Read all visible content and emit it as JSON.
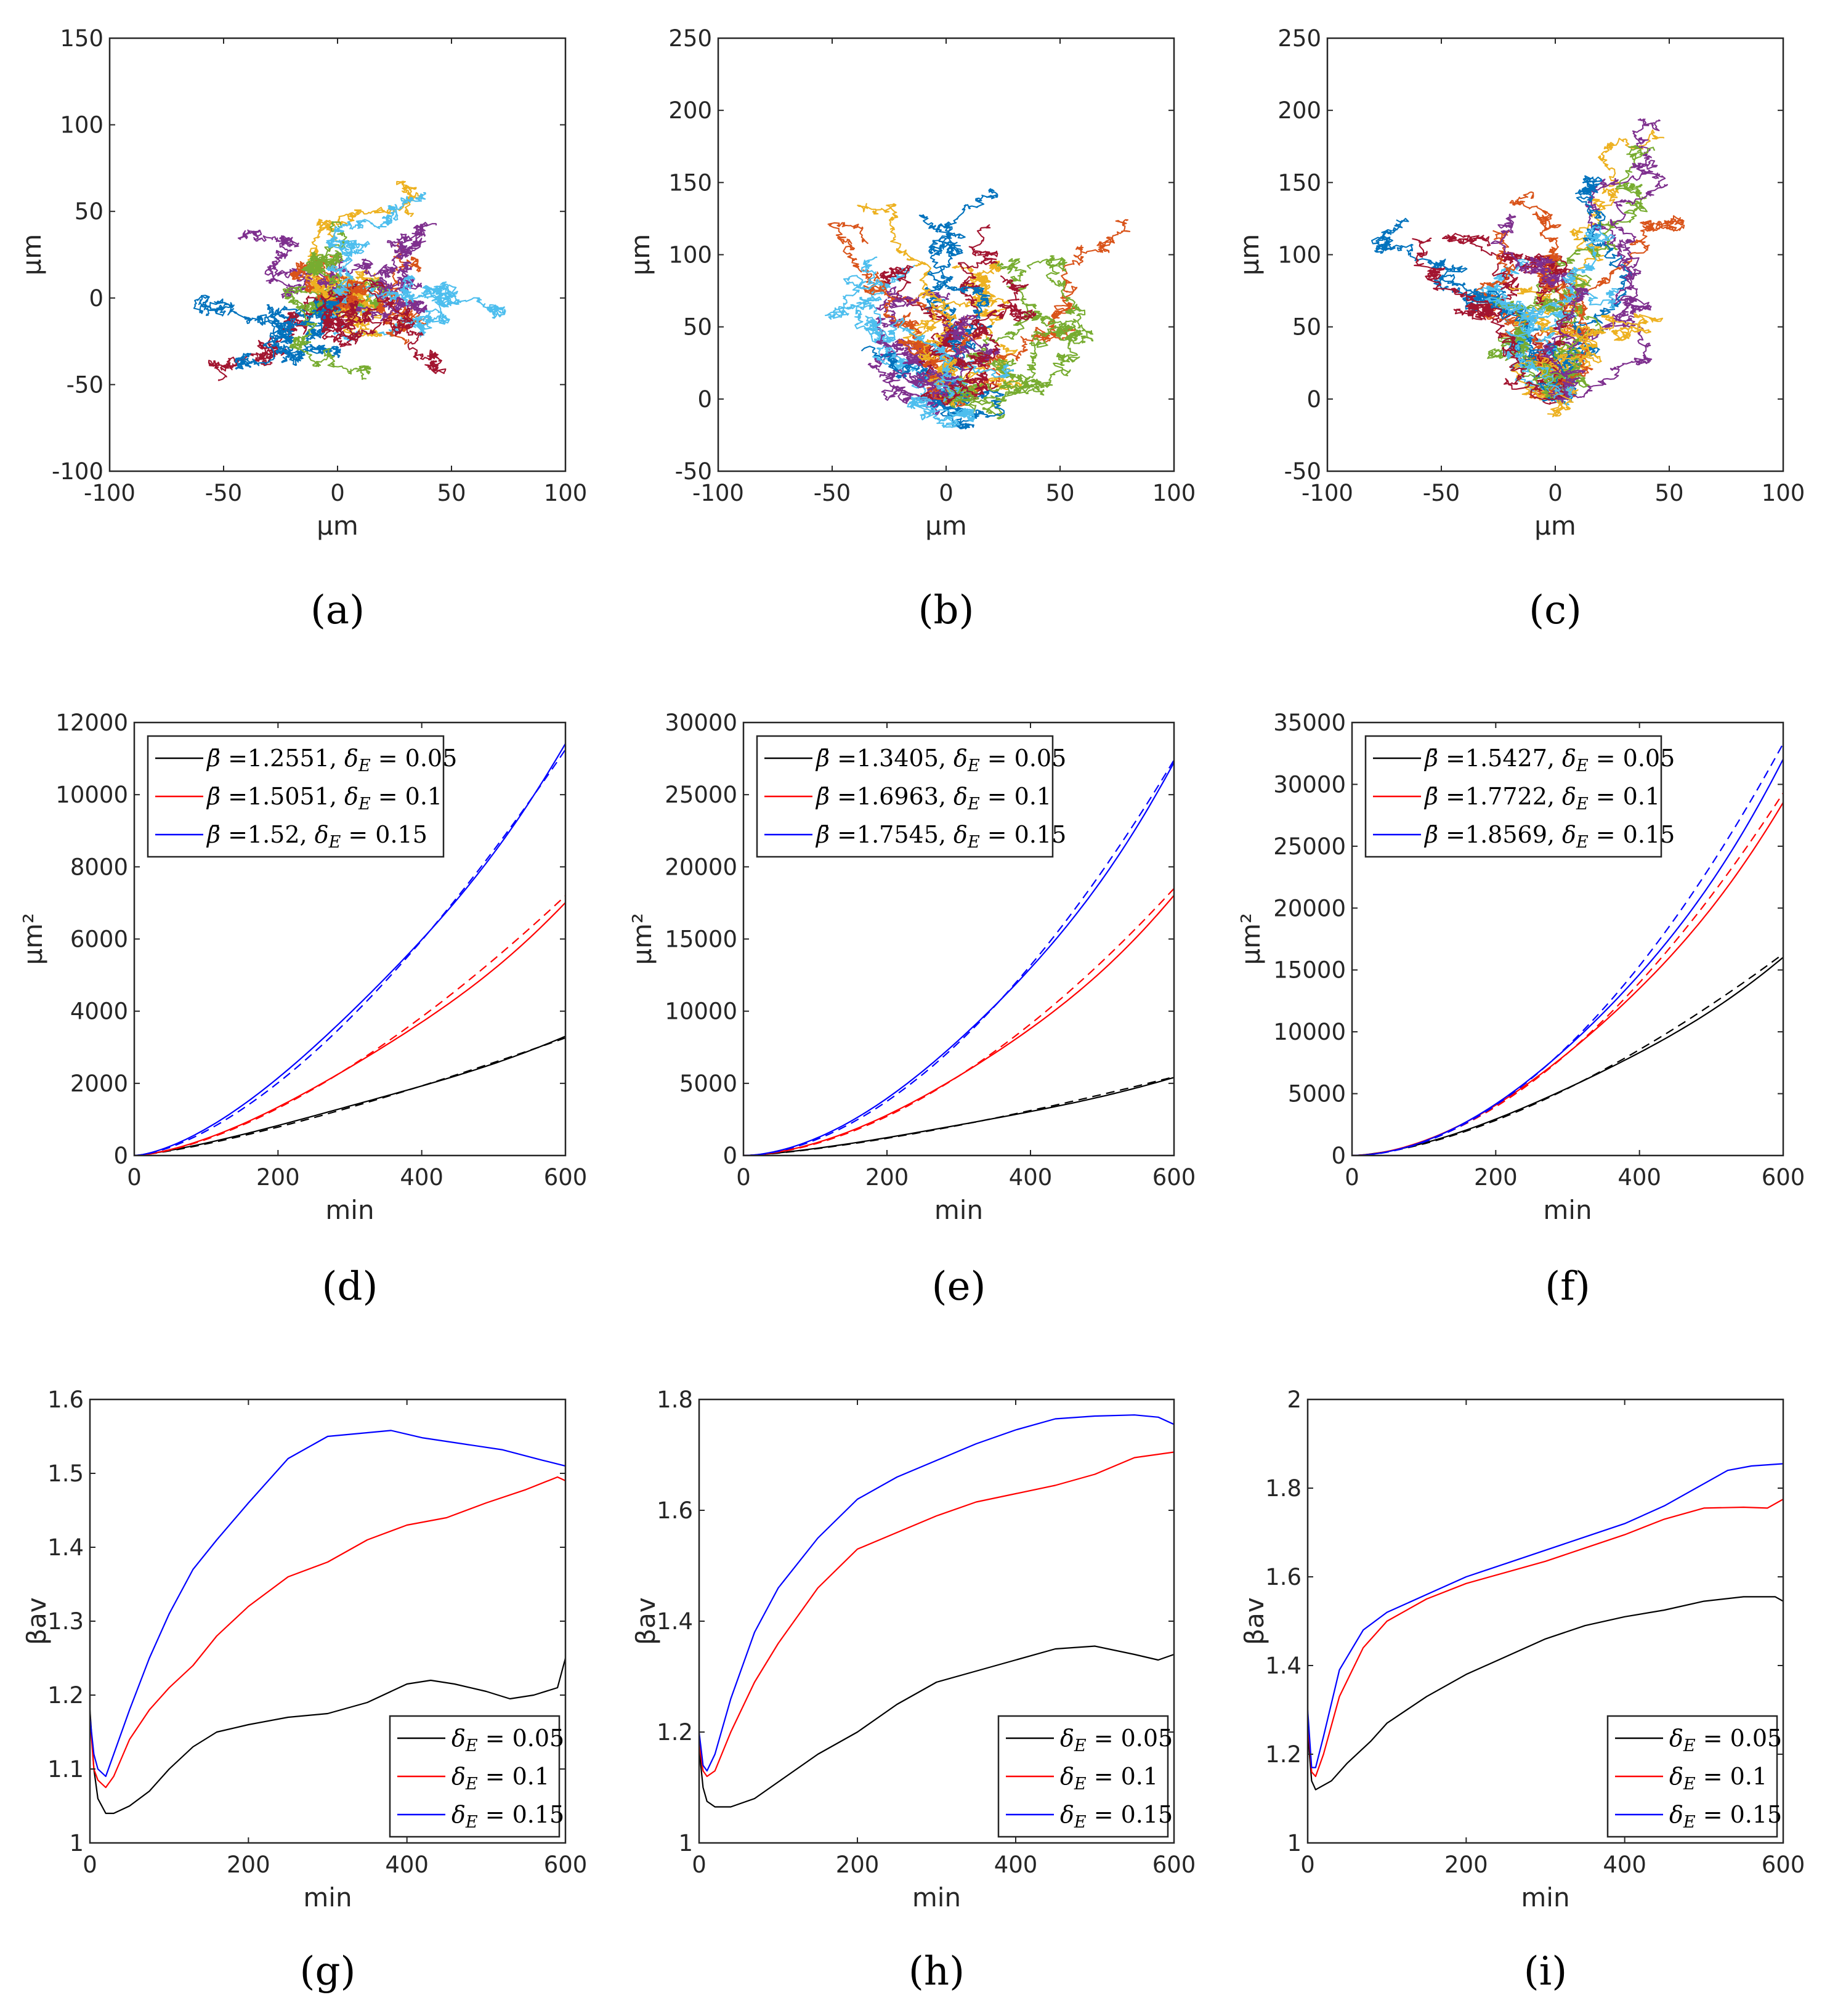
{
  "figure_title": "",
  "colors": {
    "black": "#000000",
    "red": "#ff0000",
    "blue": "#0000ff",
    "trajectories": [
      "#0072bd",
      "#d95319",
      "#edb120",
      "#7e2f8e",
      "#77ac30",
      "#4dbeee",
      "#a2142f"
    ]
  },
  "chart_data": [
    {
      "id": "a",
      "panel_label": "(a)",
      "type": "scatter",
      "subtype": "trajectories",
      "xlabel": "μm",
      "ylabel": "μm",
      "xlim": [
        -100,
        100
      ],
      "ylim": [
        -100,
        150
      ],
      "xticks": [
        "-100",
        "-50",
        "0",
        "50",
        "100"
      ],
      "yticks": [
        "-100",
        "-50",
        "0",
        "50",
        "100",
        "150"
      ],
      "trajectory_count": 21,
      "trajectory_steps": 600,
      "trajectory_spread": 15,
      "trajectory_drift": [
        0,
        0
      ],
      "trajectory_seed": 11
    },
    {
      "id": "b",
      "panel_label": "(b)",
      "type": "scatter",
      "subtype": "trajectories",
      "xlabel": "μm",
      "ylabel": "μm",
      "xlim": [
        -100,
        100
      ],
      "ylim": [
        -50,
        250
      ],
      "xticks": [
        "-100",
        "-50",
        "0",
        "50",
        "100"
      ],
      "yticks": [
        "-50",
        "0",
        "50",
        "100",
        "150",
        "200",
        "250"
      ],
      "trajectory_count": 21,
      "trajectory_steps": 600,
      "trajectory_spread": 17,
      "trajectory_drift": [
        0,
        90
      ],
      "trajectory_seed": 23
    },
    {
      "id": "c",
      "panel_label": "(c)",
      "type": "scatter",
      "subtype": "trajectories",
      "xlabel": "μm",
      "ylabel": "μm",
      "xlim": [
        -100,
        100
      ],
      "ylim": [
        -50,
        250
      ],
      "xticks": [
        "-100",
        "-50",
        "0",
        "50",
        "100"
      ],
      "yticks": [
        "-50",
        "0",
        "50",
        "100",
        "150",
        "200",
        "250"
      ],
      "trajectory_count": 21,
      "trajectory_steps": 600,
      "trajectory_spread": 18,
      "trajectory_drift": [
        0,
        120
      ],
      "trajectory_seed": 37
    },
    {
      "id": "d",
      "panel_label": "(d)",
      "type": "line",
      "xlabel": "min",
      "ylabel": "μm²",
      "xlim": [
        0,
        600
      ],
      "ylim": [
        0,
        12000
      ],
      "xticks": [
        "0",
        "200",
        "400",
        "600"
      ],
      "yticks": [
        "0",
        "2000",
        "4000",
        "6000",
        "8000",
        "10000",
        "12000"
      ],
      "legend_position": "top-left",
      "series": [
        {
          "name": "β̄ =1.2551, δE = 0.05",
          "legend_beta": "=1.2551,",
          "legend_delta": "0.05",
          "color": "#000000",
          "end": 3300,
          "exponent": 1.2551,
          "fit_end": 3260
        },
        {
          "name": "β̄ =1.5051, δE = 0.1",
          "legend_beta": "=1.5051,",
          "legend_delta": "0.1",
          "color": "#ff0000",
          "end": 7000,
          "exponent": 1.5051,
          "fit_end": 7200
        },
        {
          "name": "β̄ =1.52, δE = 0.15",
          "legend_beta": "=1.52,",
          "legend_delta": "0.15",
          "color": "#0000ff",
          "end": 11400,
          "exponent": 1.52,
          "fit_end": 11250
        }
      ]
    },
    {
      "id": "e",
      "panel_label": "(e)",
      "type": "line",
      "xlabel": "min",
      "ylabel": "μm²",
      "xlim": [
        0,
        600
      ],
      "ylim": [
        0,
        30000
      ],
      "xticks": [
        "0",
        "200",
        "400",
        "600"
      ],
      "yticks": [
        "0",
        "5000",
        "10000",
        "15000",
        "20000",
        "25000",
        "30000"
      ],
      "legend_position": "top-left",
      "series": [
        {
          "name": "β̄ =1.3405, δE = 0.05",
          "legend_beta": "=1.3405,",
          "legend_delta": "0.05",
          "color": "#000000",
          "end": 5400,
          "exponent": 1.3405,
          "fit_end": 5450
        },
        {
          "name": "β̄ =1.6963, δE = 0.1",
          "legend_beta": "=1.6963,",
          "legend_delta": "0.1",
          "color": "#ff0000",
          "end": 18000,
          "exponent": 1.6963,
          "fit_end": 18500
        },
        {
          "name": "β̄ =1.7545, δE = 0.15",
          "legend_beta": "=1.7545,",
          "legend_delta": "0.15",
          "color": "#0000ff",
          "end": 27200,
          "exponent": 1.7545,
          "fit_end": 27400
        }
      ]
    },
    {
      "id": "f",
      "panel_label": "(f)",
      "type": "line",
      "xlabel": "min",
      "ylabel": "μm²",
      "xlim": [
        0,
        600
      ],
      "ylim": [
        0,
        35000
      ],
      "xticks": [
        "0",
        "200",
        "400",
        "600"
      ],
      "yticks": [
        "0",
        "5000",
        "10000",
        "15000",
        "20000",
        "25000",
        "30000",
        "35000"
      ],
      "legend_position": "top-left",
      "series": [
        {
          "name": "β̄ =1.5427, δE = 0.05",
          "legend_beta": "=1.5427,",
          "legend_delta": "0.05",
          "color": "#000000",
          "end": 16000,
          "exponent": 1.5427,
          "fit_end": 16300
        },
        {
          "name": "β̄ =1.7722, δE = 0.1",
          "legend_beta": "=1.7722,",
          "legend_delta": "0.1",
          "color": "#ff0000",
          "end": 28500,
          "exponent": 1.7722,
          "fit_end": 29300
        },
        {
          "name": "β̄ =1.8569, δE = 0.15",
          "legend_beta": "=1.8569,",
          "legend_delta": "0.15",
          "color": "#0000ff",
          "end": 32000,
          "exponent": 1.8569,
          "fit_end": 33300
        }
      ]
    },
    {
      "id": "g",
      "panel_label": "(g)",
      "type": "line",
      "xlabel": "min",
      "ylabel": "βav",
      "xlim": [
        0,
        600
      ],
      "ylim": [
        1,
        1.6
      ],
      "xticks": [
        "0",
        "200",
        "400",
        "600"
      ],
      "yticks": [
        "1",
        "1.1",
        "1.2",
        "1.3",
        "1.4",
        "1.5",
        "1.6"
      ],
      "legend_position": "bottom-right",
      "series": [
        {
          "name": "δE = 0.05",
          "legend_delta": "0.05",
          "color": "#000000",
          "x": [
            0,
            5,
            10,
            20,
            30,
            50,
            75,
            100,
            130,
            160,
            200,
            250,
            300,
            350,
            400,
            430,
            460,
            500,
            530,
            560,
            590,
            600
          ],
          "y": [
            1.18,
            1.1,
            1.06,
            1.04,
            1.04,
            1.05,
            1.07,
            1.1,
            1.13,
            1.15,
            1.16,
            1.17,
            1.175,
            1.19,
            1.215,
            1.22,
            1.215,
            1.205,
            1.195,
            1.2,
            1.21,
            1.25
          ]
        },
        {
          "name": "δE = 0.1",
          "legend_delta": "0.1",
          "color": "#ff0000",
          "x": [
            0,
            5,
            10,
            20,
            30,
            50,
            75,
            100,
            130,
            160,
            200,
            250,
            300,
            350,
            400,
            450,
            500,
            550,
            590,
            600
          ],
          "y": [
            1.17,
            1.1,
            1.085,
            1.075,
            1.09,
            1.14,
            1.18,
            1.21,
            1.24,
            1.28,
            1.32,
            1.36,
            1.38,
            1.41,
            1.43,
            1.44,
            1.46,
            1.478,
            1.495,
            1.49
          ]
        },
        {
          "name": "δE = 0.15",
          "legend_delta": "0.15",
          "color": "#0000ff",
          "x": [
            0,
            5,
            10,
            20,
            30,
            50,
            75,
            100,
            130,
            160,
            200,
            250,
            300,
            350,
            380,
            420,
            470,
            520,
            570,
            600
          ],
          "y": [
            1.17,
            1.12,
            1.1,
            1.09,
            1.12,
            1.18,
            1.25,
            1.31,
            1.37,
            1.41,
            1.46,
            1.52,
            1.55,
            1.555,
            1.558,
            1.548,
            1.54,
            1.532,
            1.518,
            1.51
          ]
        }
      ]
    },
    {
      "id": "h",
      "panel_label": "(h)",
      "type": "line",
      "xlabel": "min",
      "ylabel": "βav",
      "xlim": [
        0,
        600
      ],
      "ylim": [
        1,
        1.8
      ],
      "xticks": [
        "0",
        "200",
        "400",
        "600"
      ],
      "yticks": [
        "1",
        "1.2",
        "1.4",
        "1.6",
        "1.8"
      ],
      "legend_position": "bottom-right",
      "series": [
        {
          "name": "δE = 0.05",
          "legend_delta": "0.05",
          "color": "#000000",
          "x": [
            0,
            5,
            10,
            20,
            40,
            70,
            100,
            150,
            200,
            250,
            300,
            350,
            400,
            450,
            500,
            550,
            580,
            600
          ],
          "y": [
            1.17,
            1.1,
            1.075,
            1.065,
            1.065,
            1.08,
            1.11,
            1.16,
            1.2,
            1.25,
            1.29,
            1.31,
            1.33,
            1.35,
            1.355,
            1.34,
            1.33,
            1.34
          ]
        },
        {
          "name": "δE = 0.1",
          "legend_delta": "0.1",
          "color": "#ff0000",
          "x": [
            0,
            5,
            10,
            20,
            40,
            70,
            100,
            150,
            200,
            250,
            300,
            350,
            400,
            450,
            500,
            550,
            600
          ],
          "y": [
            1.18,
            1.13,
            1.12,
            1.13,
            1.2,
            1.29,
            1.36,
            1.46,
            1.53,
            1.56,
            1.59,
            1.615,
            1.63,
            1.645,
            1.665,
            1.695,
            1.705
          ]
        },
        {
          "name": "δE = 0.15",
          "legend_delta": "0.15",
          "color": "#0000ff",
          "x": [
            0,
            5,
            10,
            20,
            40,
            70,
            100,
            150,
            200,
            250,
            300,
            350,
            400,
            450,
            500,
            550,
            580,
            600
          ],
          "y": [
            1.2,
            1.14,
            1.13,
            1.16,
            1.26,
            1.38,
            1.46,
            1.55,
            1.62,
            1.66,
            1.69,
            1.72,
            1.745,
            1.765,
            1.77,
            1.772,
            1.768,
            1.755
          ]
        }
      ]
    },
    {
      "id": "i",
      "panel_label": "(i)",
      "type": "line",
      "xlabel": "min",
      "ylabel": "βav",
      "xlim": [
        0,
        600
      ],
      "ylim": [
        1,
        2
      ],
      "xticks": [
        "0",
        "200",
        "400",
        "600"
      ],
      "yticks": [
        "1",
        "1.2",
        "1.4",
        "1.6",
        "1.8",
        "2"
      ],
      "legend_position": "bottom-right",
      "series": [
        {
          "name": "δE = 0.05",
          "legend_delta": "0.05",
          "color": "#000000",
          "x": [
            0,
            5,
            10,
            30,
            50,
            80,
            100,
            150,
            200,
            250,
            300,
            350,
            400,
            450,
            500,
            550,
            590,
            600
          ],
          "y": [
            1.25,
            1.14,
            1.12,
            1.14,
            1.18,
            1.23,
            1.27,
            1.33,
            1.38,
            1.42,
            1.46,
            1.49,
            1.51,
            1.525,
            1.545,
            1.555,
            1.555,
            1.545
          ]
        },
        {
          "name": "δE = 0.1",
          "legend_delta": "0.1",
          "color": "#ff0000",
          "x": [
            0,
            5,
            10,
            20,
            40,
            70,
            100,
            150,
            200,
            250,
            300,
            350,
            400,
            450,
            500,
            550,
            580,
            600
          ],
          "y": [
            1.28,
            1.16,
            1.15,
            1.2,
            1.33,
            1.44,
            1.5,
            1.55,
            1.585,
            1.61,
            1.635,
            1.665,
            1.695,
            1.73,
            1.755,
            1.757,
            1.755,
            1.775
          ]
        },
        {
          "name": "δE = 0.15",
          "legend_delta": "0.15",
          "color": "#0000ff",
          "x": [
            0,
            5,
            10,
            20,
            40,
            70,
            100,
            150,
            200,
            250,
            300,
            350,
            400,
            450,
            500,
            530,
            560,
            600
          ],
          "y": [
            1.3,
            1.17,
            1.17,
            1.24,
            1.39,
            1.48,
            1.52,
            1.56,
            1.6,
            1.63,
            1.66,
            1.69,
            1.72,
            1.76,
            1.81,
            1.84,
            1.85,
            1.855
          ]
        }
      ]
    }
  ]
}
